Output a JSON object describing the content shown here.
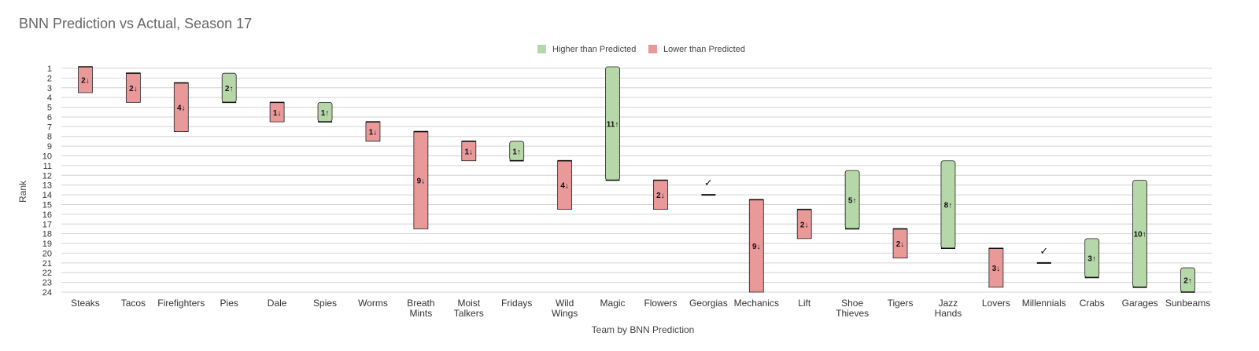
{
  "chart_data": {
    "type": "bar",
    "title": "BNN Prediction vs Actual, Season 17",
    "xlabel": "Team by BNN Prediction",
    "ylabel": "Rank",
    "ylim": [
      1,
      24
    ],
    "y_inverted": true,
    "grid": true,
    "legend_position": "top-center",
    "legend": [
      {
        "name": "Higher than Predicted",
        "color": "#b6d7a8"
      },
      {
        "name": "Lower than Predicted",
        "color": "#ea9999"
      }
    ],
    "y_ticks": [
      "1",
      "2",
      "3",
      "4",
      "5",
      "6",
      "7",
      "8",
      "9",
      "10",
      "11",
      "12",
      "13",
      "14",
      "15",
      "16",
      "17",
      "18",
      "19",
      "20",
      "21",
      "22",
      "23",
      "24"
    ],
    "bars": [
      {
        "team": "Steaks",
        "predicted": 1,
        "actual": 3,
        "label": "2↓"
      },
      {
        "team": "Tacos",
        "predicted": 2,
        "actual": 4,
        "label": "2↓"
      },
      {
        "team": "Firefighters",
        "predicted": 3,
        "actual": 7,
        "label": "4↓"
      },
      {
        "team": "Pies",
        "predicted": 4,
        "actual": 2,
        "label": "2↑"
      },
      {
        "team": "Dale",
        "predicted": 5,
        "actual": 6,
        "label": "1↓"
      },
      {
        "team": "Spies",
        "predicted": 6,
        "actual": 5,
        "label": "1↑"
      },
      {
        "team": "Worms",
        "predicted": 7,
        "actual": 8,
        "label": "1↓"
      },
      {
        "team": "Breath Mints",
        "predicted": 8,
        "actual": 17,
        "label": "9↓"
      },
      {
        "team": "Moist Talkers",
        "predicted": 9,
        "actual": 10,
        "label": "1↓"
      },
      {
        "team": "Fridays",
        "predicted": 10,
        "actual": 9,
        "label": "1↑"
      },
      {
        "team": "Wild Wings",
        "predicted": 11,
        "actual": 15,
        "label": "4↓"
      },
      {
        "team": "Magic",
        "predicted": 12,
        "actual": 1,
        "label": "11↑"
      },
      {
        "team": "Flowers",
        "predicted": 13,
        "actual": 15,
        "label": "2↓"
      },
      {
        "team": "Georgias",
        "predicted": 14,
        "actual": 14,
        "label": "✓"
      },
      {
        "team": "Mechanics",
        "predicted": 15,
        "actual": 24,
        "label": "9↓"
      },
      {
        "team": "Lift",
        "predicted": 16,
        "actual": 18,
        "label": "2↓"
      },
      {
        "team": "Shoe Thieves",
        "predicted": 17,
        "actual": 12,
        "label": "5↑"
      },
      {
        "team": "Tigers",
        "predicted": 18,
        "actual": 20,
        "label": "2↓"
      },
      {
        "team": "Jazz Hands",
        "predicted": 19,
        "actual": 11,
        "label": "8↑"
      },
      {
        "team": "Lovers",
        "predicted": 20,
        "actual": 23,
        "label": "3↓"
      },
      {
        "team": "Millennials",
        "predicted": 21,
        "actual": 21,
        "label": "✓"
      },
      {
        "team": "Crabs",
        "predicted": 22,
        "actual": 19,
        "label": "3↑"
      },
      {
        "team": "Garages",
        "predicted": 23,
        "actual": 13,
        "label": "10↑"
      },
      {
        "team": "Sunbeams",
        "predicted": 24,
        "actual": 22,
        "label": "2↑"
      }
    ]
  }
}
